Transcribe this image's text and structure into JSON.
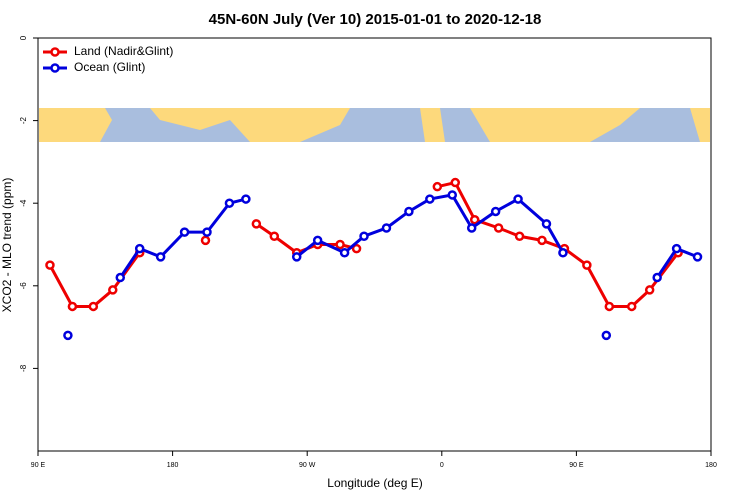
{
  "chart_data": {
    "type": "line",
    "title": "45N-60N July (Ver 10)   2015-01-01 to 2020-12-18",
    "xlabel": "Longitude (deg E)",
    "ylabel": "XCO2 - MLO trend (ppm)",
    "xlim": [
      90,
      540
    ],
    "ylim": [
      -10,
      0
    ],
    "xticks": [
      {
        "value": 90,
        "label": "90 E"
      },
      180,
      {
        "value": 270,
        "label": "90 W"
      },
      {
        "value": 360,
        "label": "0"
      },
      {
        "value": 450,
        "label": "90 E"
      },
      {
        "value": 540,
        "label": "180"
      }
    ],
    "yticks": [
      0,
      -2,
      -4,
      -6,
      -8
    ],
    "legend": "top-left",
    "series": [
      {
        "name": "Land (Nadir&Glint)",
        "color": "#ee0000",
        "x": [
          98,
          113,
          127,
          140,
          158,
          null,
          202,
          null,
          236,
          248,
          263,
          277,
          292,
          303,
          null,
          357,
          369,
          382,
          398,
          412,
          427,
          442,
          457,
          472,
          487,
          499,
          518
        ],
        "values": [
          -5.5,
          -6.5,
          -6.5,
          -6.1,
          -5.2,
          null,
          -4.9,
          null,
          -4.5,
          -4.8,
          -5.2,
          -5.0,
          -5.0,
          -5.1,
          null,
          -3.6,
          -3.5,
          -4.4,
          -4.6,
          -4.8,
          -4.9,
          -5.1,
          -5.5,
          -6.5,
          -6.5,
          -6.1,
          -5.2
        ]
      },
      {
        "name": "Ocean (Glint)",
        "color": "#0000dd",
        "x": [
          110,
          null,
          145,
          158,
          172,
          188,
          203,
          218,
          229,
          null,
          263,
          277,
          295,
          308,
          323,
          338,
          352,
          367,
          380,
          396,
          411,
          430,
          441,
          null,
          470,
          null,
          504,
          517,
          531
        ],
        "values": [
          -7.2,
          null,
          -5.8,
          -5.1,
          -5.3,
          -4.7,
          -4.7,
          -4.0,
          -3.9,
          null,
          -5.3,
          -4.9,
          -5.2,
          -4.8,
          -4.6,
          -4.2,
          -3.9,
          -3.8,
          -4.6,
          -4.2,
          -3.9,
          -4.5,
          -5.2,
          null,
          -7.2,
          null,
          -5.8,
          -5.1,
          -5.3
        ]
      }
    ]
  }
}
